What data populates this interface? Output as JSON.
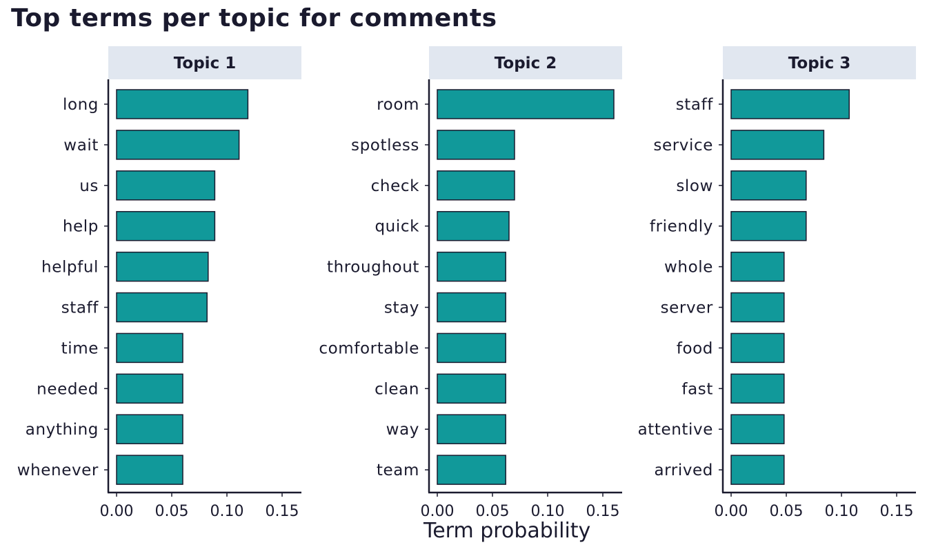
{
  "chart_data": {
    "type": "bar",
    "orientation": "horizontal",
    "title": "Top terms per topic for comments",
    "xlabel": "Term probability",
    "ylabel": "",
    "xlim": [
      0,
      0.16
    ],
    "xticks": [
      "0.00",
      "0.05",
      "0.10",
      "0.15"
    ],
    "grid": false,
    "bar_color": "#11999a",
    "bar_edge_color": "#1a1a2e",
    "facet_strip_color": "#e1e7f0",
    "facets": [
      {
        "label": "Topic 1",
        "terms": [
          "long",
          "wait",
          "us",
          "help",
          "helpful",
          "staff",
          "time",
          "needed",
          "anything",
          "whenever"
        ],
        "values": [
          0.119,
          0.111,
          0.089,
          0.089,
          0.083,
          0.082,
          0.06,
          0.06,
          0.06,
          0.06
        ]
      },
      {
        "label": "Topic 2",
        "terms": [
          "room",
          "spotless",
          "check",
          "quick",
          "throughout",
          "stay",
          "comfortable",
          "clean",
          "way",
          "team"
        ],
        "values": [
          0.16,
          0.07,
          0.07,
          0.065,
          0.062,
          0.062,
          0.062,
          0.062,
          0.062,
          0.062
        ]
      },
      {
        "label": "Topic 3",
        "terms": [
          "staff",
          "service",
          "slow",
          "friendly",
          "whole",
          "server",
          "food",
          "fast",
          "attentive",
          "arrived"
        ],
        "values": [
          0.107,
          0.084,
          0.068,
          0.068,
          0.048,
          0.048,
          0.048,
          0.048,
          0.048,
          0.048
        ]
      }
    ]
  }
}
